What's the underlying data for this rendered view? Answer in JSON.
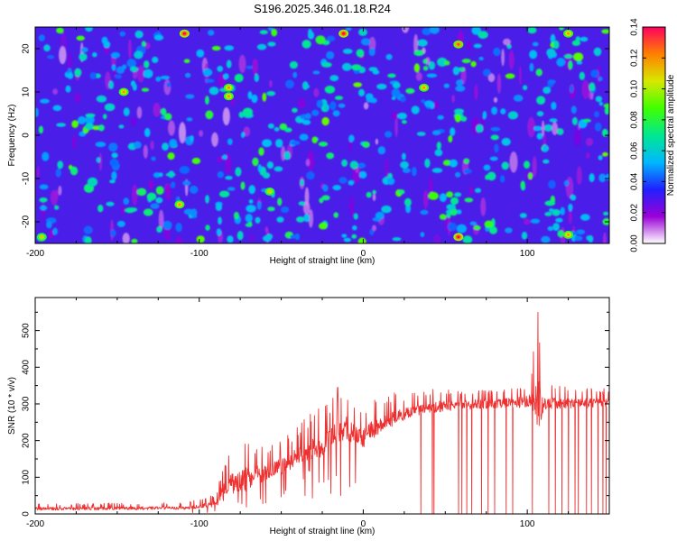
{
  "title": "S196.2025.346.01.18.R24",
  "chart_data": [
    {
      "type": "heatmap",
      "name": "spectrogram",
      "xlabel": "Height of straight line (km)",
      "ylabel": "Frequency (Hz)",
      "xlim": [
        -200,
        150
      ],
      "ylim": [
        -25,
        25
      ],
      "xticks": [
        -200,
        -100,
        0,
        100
      ],
      "yticks": [
        20,
        10,
        0,
        -10,
        -20
      ],
      "colorbar": {
        "label": "Normalized spectral amplitude",
        "range": [
          0,
          0.14
        ],
        "ticks": [
          "0.00",
          "0.02",
          "0.04",
          "0.06",
          "0.08",
          "0.10",
          "0.12",
          "0.14"
        ],
        "colors": [
          "#ffffff",
          "#9a00d8",
          "#2020ff",
          "#00b8ff",
          "#00e890",
          "#40ff00",
          "#d8e800",
          "#ff8000",
          "#ff0060"
        ]
      },
      "background_color": "#4a1ee8",
      "blob_density": 520,
      "hot_spots": [
        {
          "x": -109,
          "y": 23.5,
          "v": 0.14
        },
        {
          "x": -12,
          "y": 23.5,
          "v": 0.14
        },
        {
          "x": 58,
          "y": 21,
          "v": 0.13
        },
        {
          "x": 125,
          "y": 23.5,
          "v": 0.12
        },
        {
          "x": -146,
          "y": 10,
          "v": 0.12
        },
        {
          "x": -82,
          "y": 11,
          "v": 0.12
        },
        {
          "x": -82,
          "y": 9,
          "v": 0.12
        },
        {
          "x": 37,
          "y": 11,
          "v": 0.12
        },
        {
          "x": -112,
          "y": -16,
          "v": 0.12
        },
        {
          "x": 58,
          "y": -23.5,
          "v": 0.14
        },
        {
          "x": 125,
          "y": -23,
          "v": 0.12
        },
        {
          "x": -57,
          "y": -13,
          "v": 0.11
        },
        {
          "x": -196,
          "y": -23.5,
          "v": 0.11
        }
      ]
    },
    {
      "type": "line",
      "name": "snr",
      "xlabel": "Height of straight line (km)",
      "ylabel": "SNR (10 * v/v)",
      "xlim": [
        -200,
        150
      ],
      "ylim": [
        0,
        590
      ],
      "xticks": [
        -200,
        -100,
        0,
        100
      ],
      "yticks": [
        0,
        100,
        200,
        300,
        400,
        500
      ],
      "color": "#ee3030",
      "envelope": {
        "x": [
          -200,
          -110,
          -100,
          -90,
          -85,
          -80,
          -70,
          -60,
          -50,
          -40,
          -30,
          -20,
          -15,
          -10,
          -5,
          0,
          5,
          10,
          15,
          20,
          30,
          40,
          50,
          60,
          70,
          80,
          90,
          100,
          103,
          106,
          110,
          120,
          130,
          140,
          150
        ],
        "base": [
          10,
          12,
          15,
          20,
          35,
          50,
          70,
          90,
          110,
          130,
          150,
          170,
          190,
          200,
          190,
          180,
          200,
          215,
          230,
          245,
          265,
          275,
          280,
          285,
          285,
          288,
          290,
          290,
          280,
          210,
          285,
          288,
          288,
          290,
          290
        ],
        "peak": [
          28,
          32,
          40,
          55,
          140,
          190,
          205,
          190,
          200,
          240,
          290,
          300,
          355,
          360,
          300,
          290,
          320,
          310,
          330,
          330,
          330,
          340,
          345,
          340,
          345,
          345,
          350,
          360,
          420,
          588,
          360,
          350,
          345,
          345,
          345
        ]
      },
      "dropouts": [
        35,
        42,
        43,
        58,
        60,
        63,
        66,
        72,
        76,
        80,
        87,
        91,
        103,
        113,
        117,
        121,
        125,
        129,
        131,
        136,
        139,
        143,
        146,
        148
      ]
    }
  ]
}
